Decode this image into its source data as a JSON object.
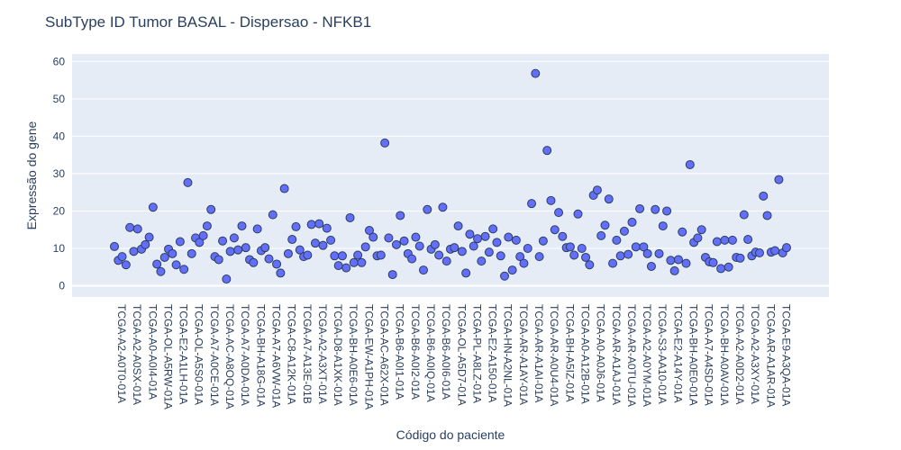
{
  "chart_data": {
    "type": "scatter",
    "title": "SubType ID Tumor BASAL - Dispersao - NFKB1",
    "xlabel": "Código do paciente",
    "ylabel": "Expressão do gene",
    "ylim": [
      -3,
      62
    ],
    "yticks": [
      0,
      10,
      20,
      30,
      40,
      50,
      60
    ],
    "grid": true,
    "xticklabels": [
      "TCGA-A2-A0T0-01A",
      "TCGA-A2-A0SX-01A",
      "TCGA-A0-A0I4-01A",
      "TCGA-OL-A5RW-01A",
      "TCGA-E2-A1LH-01A",
      "TCGA-OL-A5S0-01A",
      "TCGA-A7-A0CE-01A",
      "TCGA-AC-A8OQ-01A",
      "TCGA-A7-A0DA-01A",
      "TCGA-BH-A18G-01A",
      "TCGA-A7-A6VW-01A",
      "TCGA-C8-A12K-01A",
      "TCGA-A7-A13E-01B",
      "TCGA-A2-A3XT-01A",
      "TCGA-D8-A1XK-01A",
      "TCGA-BH-A0E6-01A",
      "TCGA-EW-A1PH-01A",
      "TCGA-AC-A62X-01A",
      "TCGA-B6-A0I1-01A",
      "TCGA-B6-A0I2-01A",
      "TCGA-B6-A0IQ-01A",
      "TCGA-B6-A0I6-01A",
      "TCGA-OL-A5D7-01A",
      "TCGA-PL-A8LZ-01A",
      "TCGA-E2-A150-01A",
      "TCGA-HN-A2NL-01A",
      "TCGA-AR-A1AY-01A",
      "TCGA-AR-A1AI-01A",
      "TCGA-AR-A0U4-01A",
      "TCGA-BH-A5IZ-01A",
      "TCGA-A0-A12B-01A",
      "TCGA-A0-A0J6-01A",
      "TCGA-AR-A1AJ-01A",
      "TCGA-AR-A0TU-01A",
      "TCGA-A2-A0YM-01A",
      "TCGA-S3-AA10-01A",
      "TCGA-E2-A14Y-01A",
      "TCGA-BH-A0E0-01A",
      "TCGA-A7-A4SD-01A",
      "TCGA-BH-A0AV-01A",
      "TCGA-A2-A0D2-01A",
      "TCGA-A2-A3XY-01A",
      "TCGA-AR-A1AR-01A",
      "TCGA-E9-A3QA-01A"
    ],
    "y": [
      10.5,
      6.8,
      7.8,
      5.6,
      15.6,
      9.2,
      15.2,
      9.8,
      11.0,
      13.0,
      21.0,
      5.8,
      3.8,
      7.6,
      9.8,
      8.6,
      5.6,
      11.8,
      4.4,
      27.6,
      8.6,
      12.8,
      11.6,
      13.4,
      16.0,
      20.4,
      7.8,
      7.0,
      12.0,
      1.8,
      9.2,
      12.8,
      9.6,
      16.0,
      10.2,
      7.0,
      6.2,
      15.2,
      9.4,
      10.2,
      7.2,
      19.0,
      5.8,
      3.4,
      26.0,
      8.6,
      12.4,
      15.8,
      9.6,
      7.8,
      8.2,
      16.4,
      11.4,
      16.6,
      10.8,
      15.4,
      12.2,
      8.0,
      5.4,
      8.0,
      4.8,
      18.2,
      6.2,
      8.2,
      6.2,
      10.4,
      14.8,
      13.0,
      8.0,
      8.2,
      38.2,
      12.8,
      3.0,
      11.0,
      18.8,
      12.0,
      8.6,
      7.2,
      13.0,
      10.6,
      4.2,
      20.4,
      9.8,
      11.0,
      8.2,
      21.0,
      6.6,
      9.8,
      10.2,
      16.0,
      9.2,
      3.4,
      13.8,
      10.6,
      12.6,
      6.6,
      13.2,
      9.0,
      15.2,
      11.6,
      8.0,
      2.6,
      13.0,
      4.2,
      12.2,
      7.8,
      6.0,
      10.0,
      22.0,
      56.8,
      7.8,
      12.0,
      36.2,
      22.8,
      15.0,
      19.6,
      13.2,
      10.2,
      10.4,
      8.2,
      19.2,
      10.0,
      7.6,
      5.6,
      24.2,
      25.6,
      13.4,
      16.2,
      23.2,
      6.0,
      12.2,
      8.0,
      14.6,
      8.4,
      17.0,
      10.4,
      20.6,
      10.4,
      8.6,
      5.2,
      20.4,
      8.6,
      16.0,
      20.0,
      6.8,
      4.0,
      7.0,
      14.4,
      6.0,
      32.4,
      11.6,
      12.8,
      15.0,
      7.6,
      6.4,
      6.2,
      11.8,
      4.6,
      12.2,
      5.0,
      12.2,
      7.6,
      7.4,
      19.0,
      12.4,
      8.0,
      9.0,
      8.8,
      24.0,
      18.8,
      9.0,
      9.4,
      28.4,
      8.8,
      10.2
    ]
  },
  "colors": {
    "plot_bg": "#e5ecf6",
    "grid": "#ffffff",
    "marker_fill": "#636efa",
    "marker_stroke": "#2a3f5f",
    "text": "#2a3f5f"
  }
}
